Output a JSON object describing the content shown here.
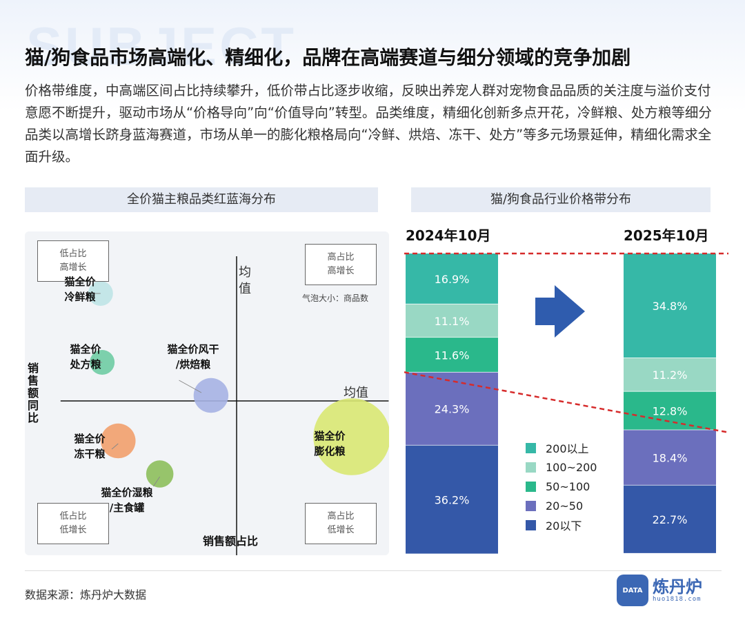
{
  "watermark": "SUBJECT",
  "title": "猫/狗食品市场高端化、精细化，品牌在高端赛道与细分领域的竞争加剧",
  "intro": "价格带维度，中高端区间占比持续攀升，低价带占比逐步收缩，反映出养宠人群对宠物食品品质的关注度与溢价支付意愿不断提升，驱动市场从“价格导向”向“价值导向”转型。品类维度，精细化创新多点开花，冷鲜粮、处方粮等细分品类以高增长跻身蓝海赛道，市场从单一的膨化粮格局向“冷鲜、烘焙、冻干、处方”等多元场景延伸，精细化需求全面升级。",
  "left_panel_title": "全价猫主粮品类红蓝海分布",
  "right_panel_title": "猫/狗食品行业价格带分布",
  "chart_data": [
    {
      "type": "scatter",
      "title": "全价猫主粮品类红蓝海分布",
      "xlabel": "销售额占比",
      "ylabel": "销售额同比",
      "x_mean_label": "均值",
      "y_mean_label": "均值",
      "bubble_note": "气泡大小：商品数",
      "quadrants": {
        "top_left": [
          "低占比",
          "高增长"
        ],
        "top_right": [
          "高占比",
          "高增长"
        ],
        "bottom_left": [
          "低占比",
          "低增长"
        ],
        "bottom_right": [
          "高占比",
          "低增长"
        ]
      },
      "points": [
        {
          "label": [
            "猫全价",
            "冷鲜粮"
          ],
          "x": -0.85,
          "y": 0.78,
          "size": 1.0,
          "color": "#bfe4e6"
        },
        {
          "label": [
            "猫全价",
            "处方粮"
          ],
          "x": -0.84,
          "y": 0.28,
          "size": 1.0,
          "color": "#6fcca3"
        },
        {
          "label": [
            "猫全价风干",
            "/烘焙粮"
          ],
          "x": -0.16,
          "y": 0.04,
          "size": 1.4,
          "color": "#a6b3e3"
        },
        {
          "label": [
            "猫全价",
            "冻干粮"
          ],
          "x": -0.74,
          "y": -0.29,
          "size": 1.4,
          "color": "#f2a06c"
        },
        {
          "label": [
            "猫全价湿粮",
            "/主食罐"
          ],
          "x": -0.48,
          "y": -0.53,
          "size": 1.1,
          "color": "#8dbf5b"
        },
        {
          "label": [
            "猫全价",
            "膨化粮"
          ],
          "x": 0.72,
          "y": -0.26,
          "size": 3.1,
          "color": "#d9e872"
        }
      ]
    },
    {
      "type": "bar",
      "stacked": true,
      "title": "猫/狗食品行业价格带分布",
      "categories": [
        "2024年10月",
        "2025年10月"
      ],
      "series": [
        {
          "name": "20以下",
          "values": [
            36.2,
            22.7
          ],
          "color": "#3458a8"
        },
        {
          "name": "20~50",
          "values": [
            24.3,
            18.4
          ],
          "color": "#6b6fbd"
        },
        {
          "name": "50~100",
          "values": [
            11.6,
            12.8
          ],
          "color": "#2ab88b"
        },
        {
          "name": "100~200",
          "values": [
            11.1,
            11.2
          ],
          "color": "#99d8c4"
        },
        {
          "name": "200以上",
          "values": [
            16.9,
            34.8
          ],
          "color": "#36b8a7"
        }
      ],
      "legend_order": [
        "200以上",
        "100~200",
        "50~100",
        "20~50",
        "20以下"
      ],
      "value_suffix": "%"
    }
  ],
  "source": "数据来源：炼丹炉大数据",
  "logo": {
    "mark": "DATA",
    "name": "炼丹炉",
    "url": "huo1818.com"
  }
}
